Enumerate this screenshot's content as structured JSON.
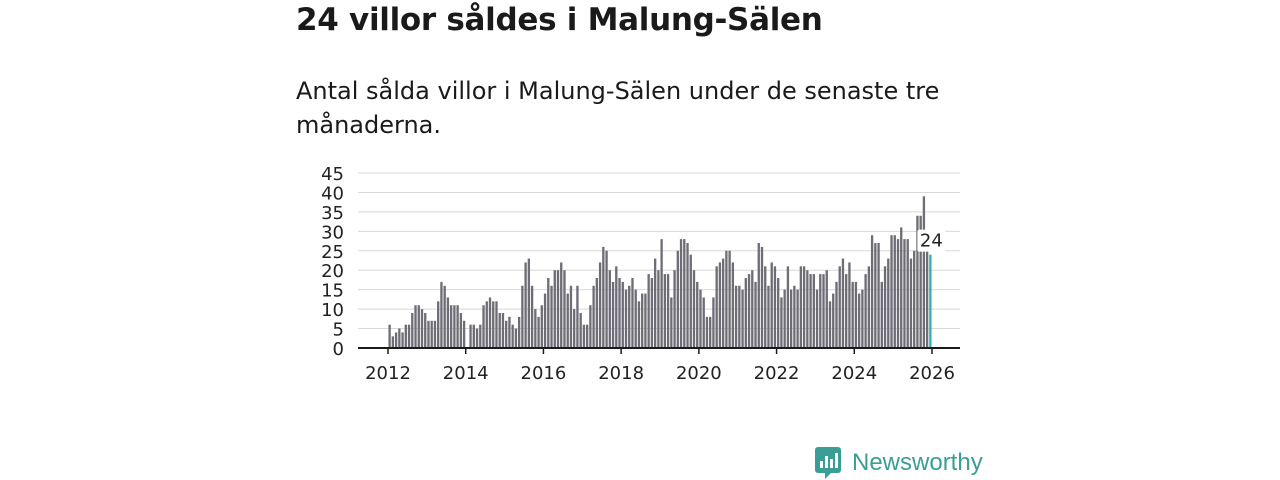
{
  "headline": "24 villor såldes i Malung-Sälen",
  "subtitle": "Antal sålda villor i Malung-Sälen under de senaste tre månaderna.",
  "brand": {
    "name": "Newsworthy",
    "color": "#3a9e96"
  },
  "colors": {
    "bar": "#6e6d76",
    "highlight": "#2ab3b2",
    "grid": "#d8d8d8",
    "axis": "#1a1a1a"
  },
  "chart_data": {
    "type": "bar",
    "title": "Antal sålda villor i Malung-Sälen under de senaste tre månaderna.",
    "xlabel": "",
    "ylabel": "",
    "ylim": [
      0,
      45
    ],
    "y_ticks": [
      0,
      5,
      10,
      15,
      20,
      25,
      30,
      35,
      40,
      45
    ],
    "x_ticks": [
      "2012",
      "2014",
      "2016",
      "2018",
      "2020",
      "2022",
      "2024",
      "2026"
    ],
    "grid": true,
    "start": "2012-01",
    "frequency": "monthly",
    "values": [
      6,
      3,
      4,
      5,
      4,
      6,
      6,
      9,
      11,
      11,
      10,
      9,
      7,
      7,
      7,
      12,
      17,
      16,
      13,
      11,
      11,
      11,
      9,
      7,
      0,
      6,
      6,
      5,
      6,
      11,
      12,
      13,
      12,
      12,
      9,
      9,
      7,
      8,
      6,
      5,
      8,
      16,
      22,
      23,
      16,
      10,
      8,
      11,
      14,
      18,
      16,
      20,
      20,
      22,
      20,
      14,
      16,
      10,
      16,
      9,
      6,
      6,
      11,
      16,
      18,
      22,
      26,
      25,
      20,
      17,
      21,
      18,
      17,
      15,
      16,
      18,
      15,
      12,
      14,
      14,
      19,
      18,
      23,
      20,
      28,
      19,
      19,
      13,
      20,
      25,
      28,
      28,
      27,
      24,
      20,
      17,
      15,
      13,
      8,
      8,
      13,
      21,
      22,
      23,
      25,
      25,
      22,
      16,
      16,
      15,
      18,
      19,
      20,
      17,
      27,
      26,
      21,
      16,
      22,
      21,
      18,
      13,
      15,
      21,
      15,
      16,
      15,
      21,
      21,
      20,
      19,
      19,
      15,
      19,
      19,
      20,
      12,
      14,
      17,
      21,
      23,
      19,
      22,
      17,
      17,
      14,
      15,
      19,
      21,
      29,
      27,
      27,
      17,
      21,
      23,
      29,
      29,
      28,
      31,
      28,
      28,
      23,
      25,
      34,
      34,
      39,
      26,
      24
    ],
    "highlight": {
      "label": "2025-12",
      "value": 24,
      "annotation": "24"
    }
  }
}
